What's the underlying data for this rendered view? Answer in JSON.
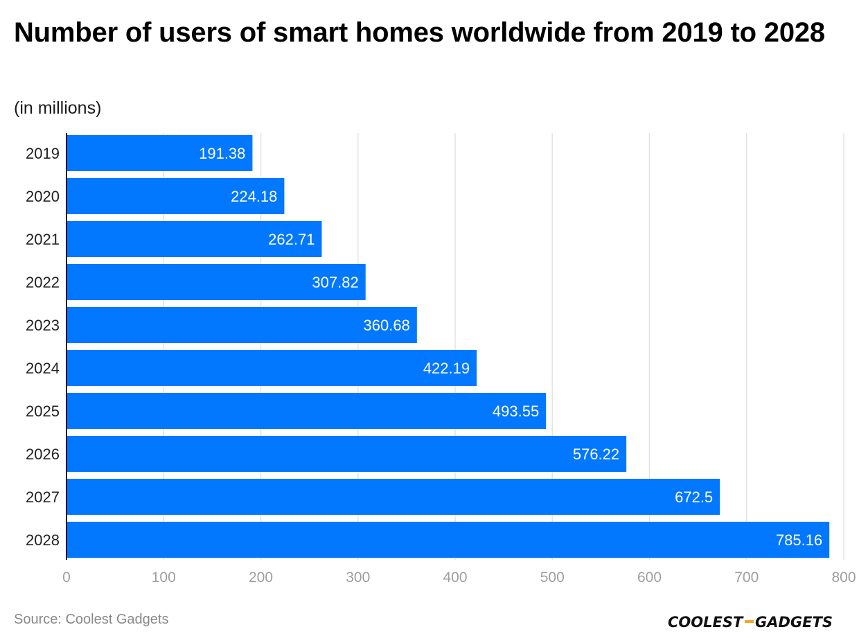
{
  "title": "Number of users of smart homes worldwide from 2019 to 2028",
  "subtitle": "(in millions)",
  "footer": {
    "source": "Source: Coolest Gadgets",
    "brand": "COOLEST-GADGETS"
  },
  "colors": {
    "bar": "#0277ff",
    "grid": "#e3e3e3",
    "axis": "#000000",
    "tick_label": "#9e9e9e",
    "value_label": "#ffffff",
    "brand_dash": "#f5a623"
  },
  "chart_data": {
    "type": "bar",
    "orientation": "horizontal",
    "title": "Number of users of smart homes worldwide from 2019 to 2028",
    "subtitle": "(in millions)",
    "xlabel": "",
    "ylabel": "",
    "categories": [
      "2019",
      "2020",
      "2021",
      "2022",
      "2023",
      "2024",
      "2025",
      "2026",
      "2027",
      "2028"
    ],
    "values": [
      191.38,
      224.18,
      262.71,
      307.82,
      360.68,
      422.19,
      493.55,
      576.22,
      672.5,
      785.16
    ],
    "value_labels": [
      "191.38",
      "224.18",
      "262.71",
      "307.82",
      "360.68",
      "422.19",
      "493.55",
      "576.22",
      "672.5",
      "785.16"
    ],
    "xlim": [
      0,
      800
    ],
    "xticks": [
      "0",
      "100",
      "200",
      "300",
      "400",
      "500",
      "600",
      "700",
      "800"
    ],
    "grid": true,
    "legend": "none"
  }
}
